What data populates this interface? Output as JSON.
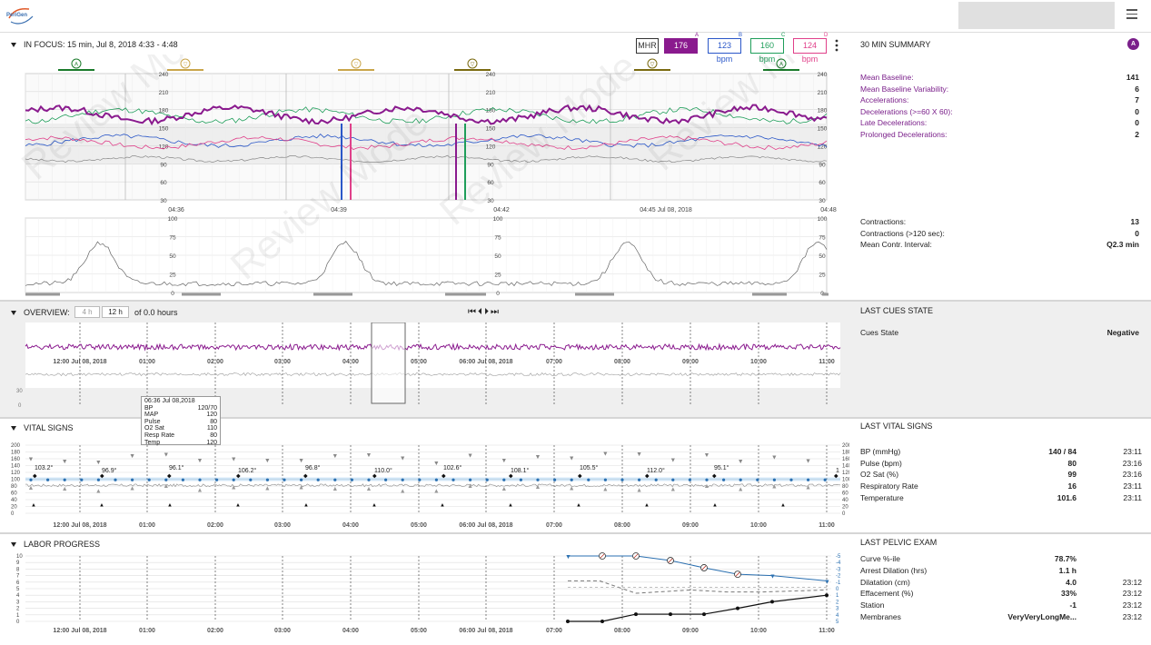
{
  "header": {
    "logo_text": "PeriGen"
  },
  "focus": {
    "title": "IN FOCUS: 15 min, Jul 8, 2018 4:33 - 4:48",
    "modes": [
      {
        "label": "MHR",
        "letter": "",
        "color": "#333333",
        "bg": "#ffffff",
        "fg": "#333333"
      },
      {
        "label": "176 bpm",
        "letter": "A",
        "color": "#8a1a8e",
        "bg": "#8a1a8e",
        "fg": "#ffffff"
      },
      {
        "label": "123 bpm",
        "letter": "B",
        "color": "#2a57c8",
        "bg": "#ffffff",
        "fg": "#2a57c8"
      },
      {
        "label": "160 bpm",
        "letter": "C",
        "color": "#1f9e5a",
        "bg": "#ffffff",
        "fg": "#1f9e5a"
      },
      {
        "label": "124 bpm",
        "letter": "D",
        "color": "#e0408a",
        "bg": "#ffffff",
        "fg": "#e0408a"
      }
    ],
    "time_ticks": [
      "04:36",
      "04:39",
      "04:42",
      "04:45 Jul 08, 2018",
      "04:48"
    ],
    "fhr_axis": [
      "240",
      "210",
      "180",
      "150",
      "120",
      "90",
      "60",
      "30"
    ],
    "uc_axis": [
      "100",
      "75",
      "50",
      "25",
      "0"
    ],
    "watermark": "Review Mode"
  },
  "summary": {
    "title": "30 MIN SUMMARY",
    "badge": "A",
    "items": [
      {
        "label": "Mean Baseline:",
        "value": "141"
      },
      {
        "label": "Mean Baseline Variability:",
        "value": "6"
      },
      {
        "label": "Accelerations:",
        "value": "7"
      },
      {
        "label": "Decelerations (>=60 X 60):",
        "value": "0"
      },
      {
        "label": "Late Decelerations:",
        "value": "0"
      },
      {
        "label": "Prolonged Decelerations:",
        "value": "2"
      }
    ],
    "contractions": [
      {
        "label": "Contractions:",
        "value": "13"
      },
      {
        "label": "Contractions (>120 sec):",
        "value": "0"
      },
      {
        "label": "Mean Contr. Interval:",
        "value": "Q2.3 min"
      }
    ]
  },
  "overview": {
    "title": "OVERVIEW:",
    "range_buttons": [
      "4 h",
      "12 h"
    ],
    "hours_text": "of 0.0 hours",
    "nav_icons": "⏮⏴⏵⏭",
    "axis": [
      "30",
      "0"
    ],
    "time_ticks": [
      "12:00 Jul 08, 2018",
      "01:00",
      "02:00",
      "03:00",
      "04:00",
      "05:00",
      "06:00 Jul 08, 2018",
      "07:00",
      "08:00",
      "09:00",
      "10:00",
      "11:00"
    ]
  },
  "cues": {
    "title": "LAST CUES STATE",
    "label": "Cues State",
    "value": "Negative"
  },
  "vitals": {
    "title": "VITAL SIGNS",
    "axis": [
      "200",
      "180",
      "160",
      "140",
      "120",
      "100",
      "80",
      "60",
      "40",
      "20",
      "0"
    ],
    "temps": [
      "103.2°",
      "96.9°",
      "96.1°",
      "106.2°",
      "96.8°",
      "110.0°",
      "102.6°",
      "108.1°",
      "105.5°",
      "112.0°",
      "95.1°",
      "1"
    ],
    "tooltip": {
      "title": "06:36 Jul 08,2018",
      "rows": [
        {
          "k": "BP",
          "v": "120/70"
        },
        {
          "k": "MAP",
          "v": "120"
        },
        {
          "k": "Pulse",
          "v": "80"
        },
        {
          "k": "O2 Sat",
          "v": "110"
        },
        {
          "k": "Resp Rate",
          "v": "80"
        },
        {
          "k": "Temp",
          "v": "120"
        }
      ]
    }
  },
  "last_vitals": {
    "title": "LAST VITAL SIGNS",
    "items": [
      {
        "label": "BP (mmHg)",
        "value": "140 / 84",
        "time": "23:11"
      },
      {
        "label": "Pulse (bpm)",
        "value": "80",
        "time": "23:16"
      },
      {
        "label": "O2 Sat (%)",
        "value": "99",
        "time": "23:16"
      },
      {
        "label": "Respiratory Rate",
        "value": "16",
        "time": "23:11"
      },
      {
        "label": "Temperature",
        "value": "101.6",
        "time": "23:11"
      }
    ]
  },
  "labor": {
    "title": "LABOR PROGRESS",
    "left_axis": [
      "10",
      "9",
      "8",
      "7",
      "6",
      "5",
      "4",
      "3",
      "2",
      "1",
      "0"
    ],
    "right_axis": [
      "-5",
      "-4",
      "-3",
      "-2",
      "-1",
      "0",
      "1",
      "2",
      "3",
      "4",
      "5"
    ]
  },
  "pelvic": {
    "title": "LAST PELVIC EXAM",
    "items": [
      {
        "label": "Curve %-ile",
        "value": "78.7%",
        "time": ""
      },
      {
        "label": "Arrest Dilation (hrs)",
        "value": "1.1 h",
        "time": ""
      },
      {
        "label": "Dilatation (cm)",
        "value": "4.0",
        "time": "23:12"
      },
      {
        "label": "Effacement (%)",
        "value": "33%",
        "time": "23:12"
      },
      {
        "label": "Station",
        "value": "-1",
        "time": "23:12"
      },
      {
        "label": "Membranes",
        "value": "VeryVeryLongMe...",
        "time": "23:12"
      }
    ]
  }
}
